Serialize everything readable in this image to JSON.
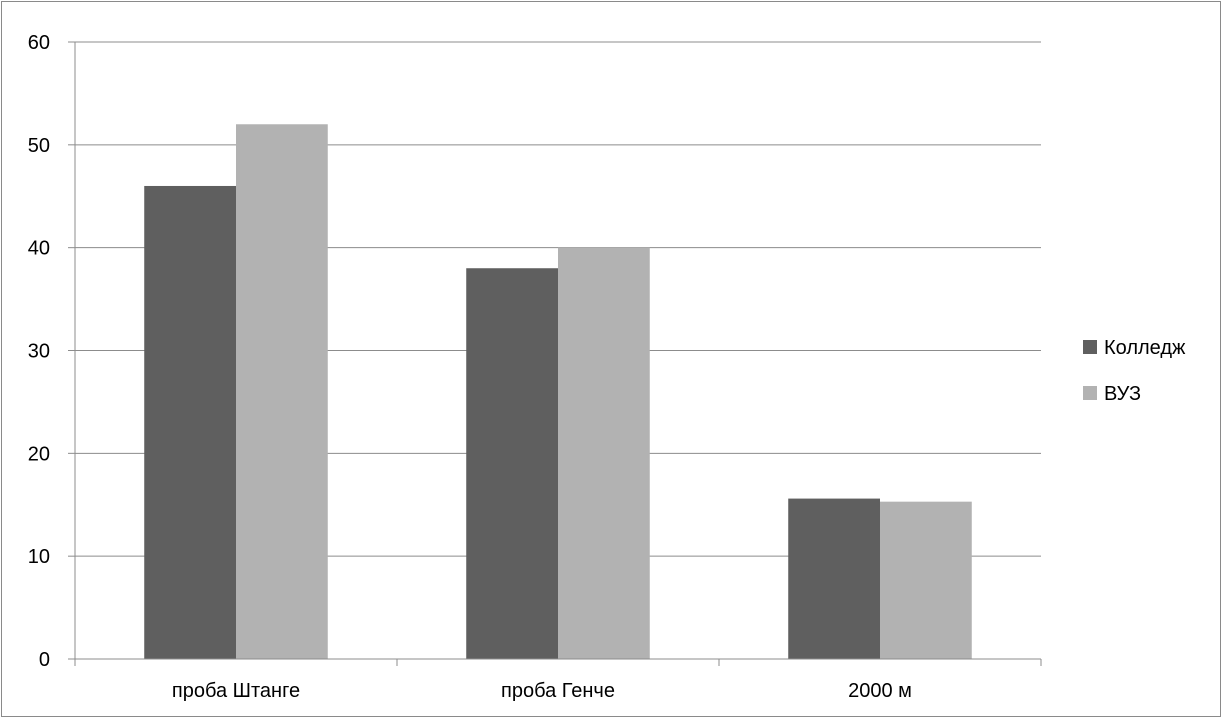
{
  "chart_data": {
    "type": "bar",
    "categories": [
      "проба Штанге",
      "проба Генче",
      "2000 м"
    ],
    "series": [
      {
        "name": "Колледж",
        "values": [
          46,
          38,
          15.6
        ],
        "color": "#5f5f5f"
      },
      {
        "name": "ВУЗ",
        "values": [
          52,
          40,
          15.3
        ],
        "color": "#b2b2b2"
      }
    ],
    "ylim": [
      0,
      60
    ],
    "yticks": [
      0,
      10,
      20,
      30,
      40,
      50,
      60
    ],
    "grid": true,
    "legend_position": "right",
    "gridline_color": "#8c8c8c",
    "axis_color": "#8c8c8c"
  }
}
